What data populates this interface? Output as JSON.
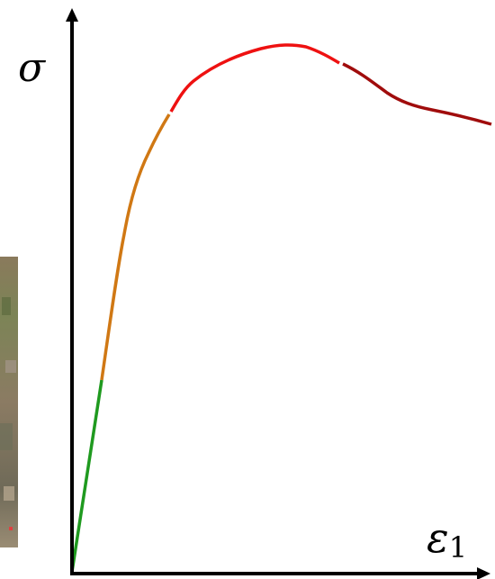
{
  "axes": {
    "y_label": "σ",
    "x_label": {
      "symbol": "ε",
      "subscript": "1"
    }
  }
}
